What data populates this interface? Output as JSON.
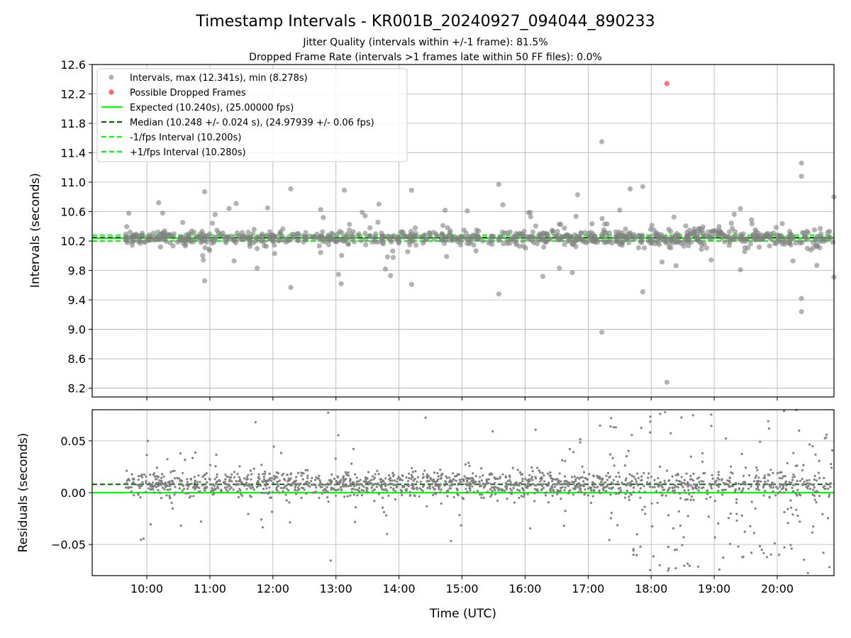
{
  "figure": {
    "title": "Timestamp Intervals - KR001B_20240927_094044_890233",
    "subtitle1": "Jitter Quality (intervals within +/-1 frame): 81.5%",
    "subtitle2": "Dropped Frame Rate (intervals >1 frames late within 50 FF files): 0.0%"
  },
  "chart_data": [
    {
      "type": "scatter",
      "panel": "top",
      "ylabel": "Intervals (seconds)",
      "xlim": [
        "09:08",
        "20:54"
      ],
      "ylim": [
        8.08,
        12.6
      ],
      "yticks": [
        "8.2",
        "8.6",
        "9.0",
        "9.4",
        "9.8",
        "10.2",
        "10.6",
        "11.0",
        "11.4",
        "11.8",
        "12.2",
        "12.6"
      ],
      "grid": true,
      "legend_position": "top-left",
      "legend": [
        {
          "label": "Intervals, max (12.341s), min (8.278s)",
          "marker": "circle",
          "color": "#808080"
        },
        {
          "label": "Possible Dropped Frames",
          "marker": "circle",
          "color": "#ff0000"
        },
        {
          "label": "Expected (10.240s), (25.00000 fps)",
          "line": "solid",
          "color": "#00ff00"
        },
        {
          "label": "Median (10.248 +/- 0.024 s), (24.97939 +/- 0.06 fps)",
          "line": "dashed",
          "color": "#006400"
        },
        {
          "label": "-1/fps Interval (10.200s)",
          "line": "dashed",
          "color": "#00ff00"
        },
        {
          "label": "+1/fps Interval (10.280s)",
          "line": "dashed",
          "color": "#00ff00"
        }
      ],
      "reference_lines": {
        "expected": 10.24,
        "median": 10.248,
        "minus_one_frame": 10.2,
        "plus_one_frame": 10.28
      },
      "series": [
        {
          "name": "Intervals, max (12.341s), min (8.278s)",
          "color": "#808080",
          "t_start": "09:40",
          "t_end": "20:54",
          "core_center": 10.245,
          "outliers": [
            {
              "t": "10:15",
              "y": 10.58
            },
            {
              "t": "10:55",
              "y": 10.87
            },
            {
              "t": "11:05",
              "y": 10.56
            },
            {
              "t": "10:55",
              "y": 9.66
            },
            {
              "t": "11:25",
              "y": 10.71
            },
            {
              "t": "11:45",
              "y": 9.83
            },
            {
              "t": "12:17",
              "y": 10.91
            },
            {
              "t": "12:17",
              "y": 9.57
            },
            {
              "t": "12:48",
              "y": 10.52
            },
            {
              "t": "13:08",
              "y": 10.89
            },
            {
              "t": "13:05",
              "y": 9.62
            },
            {
              "t": "13:25",
              "y": 10.59
            },
            {
              "t": "14:12",
              "y": 10.89
            },
            {
              "t": "14:12",
              "y": 9.61
            },
            {
              "t": "15:05",
              "y": 10.61
            },
            {
              "t": "15:35",
              "y": 10.97
            },
            {
              "t": "15:35",
              "y": 9.48
            },
            {
              "t": "16:05",
              "y": 10.59
            },
            {
              "t": "16:50",
              "y": 10.83
            },
            {
              "t": "16:45",
              "y": 9.77
            },
            {
              "t": "17:13",
              "y": 11.55
            },
            {
              "t": "17:13",
              "y": 8.96
            },
            {
              "t": "17:30",
              "y": 10.62
            },
            {
              "t": "17:40",
              "y": 10.91
            },
            {
              "t": "17:52",
              "y": 10.94
            },
            {
              "t": "17:52",
              "y": 9.51
            },
            {
              "t": "18:15",
              "y": 8.28
            },
            {
              "t": "19:25",
              "y": 10.64
            },
            {
              "t": "19:25",
              "y": 9.81
            },
            {
              "t": "20:15",
              "y": 9.93
            },
            {
              "t": "20:23",
              "y": 11.26
            },
            {
              "t": "20:23",
              "y": 11.08
            },
            {
              "t": "20:23",
              "y": 9.42
            },
            {
              "t": "20:23",
              "y": 9.24
            },
            {
              "t": "20:54",
              "y": 10.8
            },
            {
              "t": "20:54",
              "y": 9.71
            }
          ]
        },
        {
          "name": "Possible Dropped Frames",
          "color": "#ff0000",
          "points": [
            {
              "t": "18:15",
              "y": 12.341
            }
          ]
        }
      ]
    },
    {
      "type": "scatter",
      "panel": "bottom",
      "xlabel": "Time (UTC)",
      "ylabel": "Residuals (seconds)",
      "xlim": [
        "09:08",
        "20:54"
      ],
      "ylim": [
        -0.08,
        0.08
      ],
      "yticks": [
        "−0.05",
        "0.00",
        "0.05"
      ],
      "xticks": [
        "10:00",
        "11:00",
        "12:00",
        "13:00",
        "14:00",
        "15:00",
        "16:00",
        "17:00",
        "18:00",
        "19:00",
        "20:00"
      ],
      "grid": true,
      "reference_lines": {
        "zero": 0.0,
        "median_offset": 0.008
      },
      "series": [
        {
          "name": "Residuals",
          "color": "#808080",
          "t_start": "09:40",
          "t_end": "20:54",
          "core_center": 0.008
        }
      ]
    }
  ]
}
